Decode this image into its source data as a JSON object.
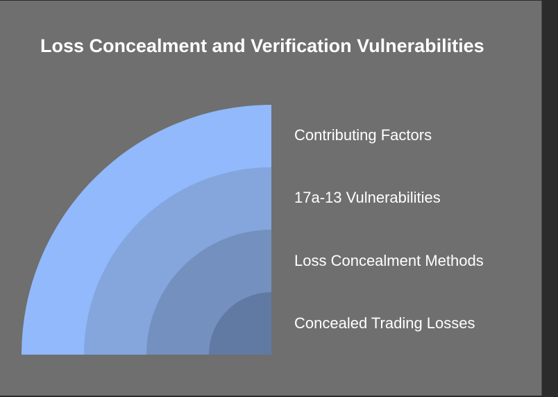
{
  "title": "Loss Concealment and Verification Vulnerabilities",
  "layers": [
    {
      "label": "Contributing Factors",
      "color": "#91b9fc"
    },
    {
      "label": "17a-13 Vulnerabilities",
      "color": "#84a6dd"
    },
    {
      "label": "Loss Concealment Methods",
      "color": "#7490bf"
    },
    {
      "label": "Concealed Trading Losses",
      "color": "#617aa3"
    }
  ]
}
